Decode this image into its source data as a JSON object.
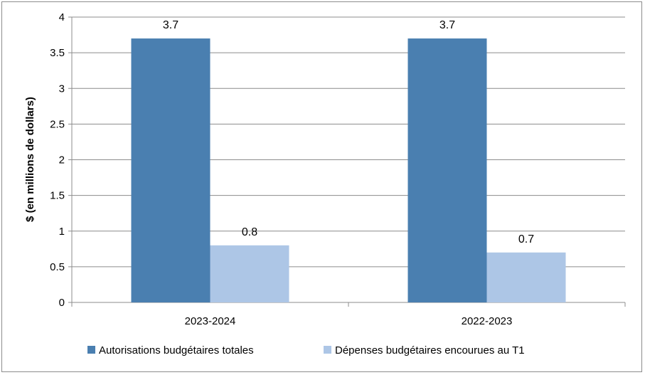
{
  "chart_data": {
    "type": "bar",
    "categories": [
      "2023-2024",
      "2022-2023"
    ],
    "series": [
      {
        "name": "Autorisations budgétaires totales",
        "values": [
          3.7,
          3.7
        ],
        "color": "#4a7fb0"
      },
      {
        "name": "Dépenses budgétaires encourues au T1",
        "values": [
          0.8,
          0.7
        ],
        "color": "#adc6e6"
      }
    ],
    "data_labels": [
      [
        "3.7",
        "3.7"
      ],
      [
        "0.8",
        "0.7"
      ]
    ],
    "ylabel": "$ (en millions de dollars)",
    "ylim": [
      0,
      4
    ],
    "yticks": [
      "0",
      "0.5",
      "1",
      "1.5",
      "2",
      "2.5",
      "3",
      "3.5",
      "4"
    ],
    "grid": true,
    "legend_position": "bottom-center"
  }
}
